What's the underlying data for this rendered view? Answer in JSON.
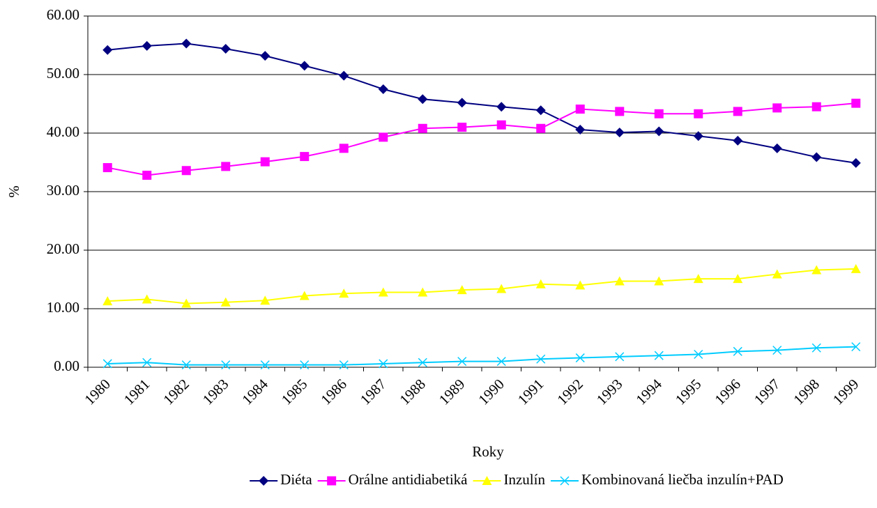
{
  "chart_data": {
    "type": "line",
    "x_label": "Roky",
    "y_label": "%",
    "categories": [
      "1980",
      "1981",
      "1982",
      "1983",
      "1984",
      "1985",
      "1986",
      "1987",
      "1988",
      "1989",
      "1990",
      "1991",
      "1992",
      "1993",
      "1994",
      "1995",
      "1996",
      "1997",
      "1998",
      "1999"
    ],
    "series": [
      {
        "name": "Diéta",
        "color": "#000080",
        "marker": "diamond",
        "values": [
          54.2,
          54.9,
          55.3,
          54.4,
          53.2,
          51.5,
          49.8,
          47.5,
          45.8,
          45.2,
          44.5,
          43.9,
          40.6,
          40.1,
          40.3,
          39.5,
          38.7,
          37.4,
          35.9,
          34.9
        ]
      },
      {
        "name": "Orálne antidiabetiká",
        "color": "#ff00ff",
        "marker": "square",
        "values": [
          34.1,
          32.8,
          33.6,
          34.3,
          35.1,
          36.0,
          37.4,
          39.3,
          40.8,
          41.0,
          41.4,
          40.8,
          44.1,
          43.7,
          43.3,
          43.3,
          43.7,
          44.3,
          44.5,
          45.1
        ]
      },
      {
        "name": "Inzulín",
        "color": "#ffff00",
        "marker": "triangle",
        "values": [
          11.3,
          11.6,
          10.9,
          11.1,
          11.4,
          12.2,
          12.6,
          12.8,
          12.8,
          13.2,
          13.4,
          14.2,
          14.0,
          14.7,
          14.7,
          15.1,
          15.1,
          15.9,
          16.6,
          16.8
        ]
      },
      {
        "name": "Kombinovaná liečba inzulín+PAD",
        "color": "#00ccff",
        "marker": "x",
        "values": [
          0.6,
          0.8,
          0.4,
          0.4,
          0.4,
          0.4,
          0.4,
          0.6,
          0.8,
          1.0,
          1.0,
          1.4,
          1.6,
          1.8,
          2.0,
          2.2,
          2.7,
          2.9,
          3.3,
          3.5
        ]
      }
    ],
    "ylim": [
      0,
      60
    ],
    "yticks": [
      {
        "value": 0,
        "label": "0.00"
      },
      {
        "value": 10,
        "label": "10.00"
      },
      {
        "value": 20,
        "label": "20.00"
      },
      {
        "value": 30,
        "label": "30.00"
      },
      {
        "value": 40,
        "label": "40.00"
      },
      {
        "value": 50,
        "label": "50.00"
      },
      {
        "value": 60,
        "label": "60.00"
      }
    ],
    "grid": true,
    "legend": "bottom"
  }
}
